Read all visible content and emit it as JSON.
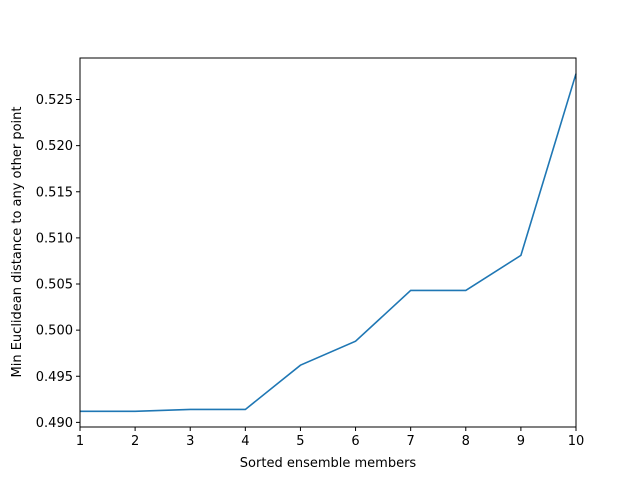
{
  "chart_data": {
    "type": "line",
    "x": [
      1,
      2,
      3,
      4,
      5,
      6,
      7,
      8,
      9,
      10
    ],
    "series": [
      {
        "values": [
          0.4912,
          0.4912,
          0.4914,
          0.4914,
          0.4962,
          0.4988,
          0.5043,
          0.5043,
          0.5081,
          0.5278
        ],
        "color": "#1f77b4"
      }
    ],
    "xlabel": "Sorted ensemble members",
    "ylabel": "Min Euclidean distance to any other point",
    "xlim": [
      1,
      10
    ],
    "ylim": [
      0.4895,
      0.5295
    ],
    "xticks": [
      "1",
      "2",
      "3",
      "4",
      "5",
      "6",
      "7",
      "8",
      "9",
      "10"
    ],
    "yticks": [
      "0.490",
      "0.495",
      "0.500",
      "0.505",
      "0.510",
      "0.515",
      "0.520",
      "0.525"
    ],
    "grid": false,
    "legend": "none"
  }
}
